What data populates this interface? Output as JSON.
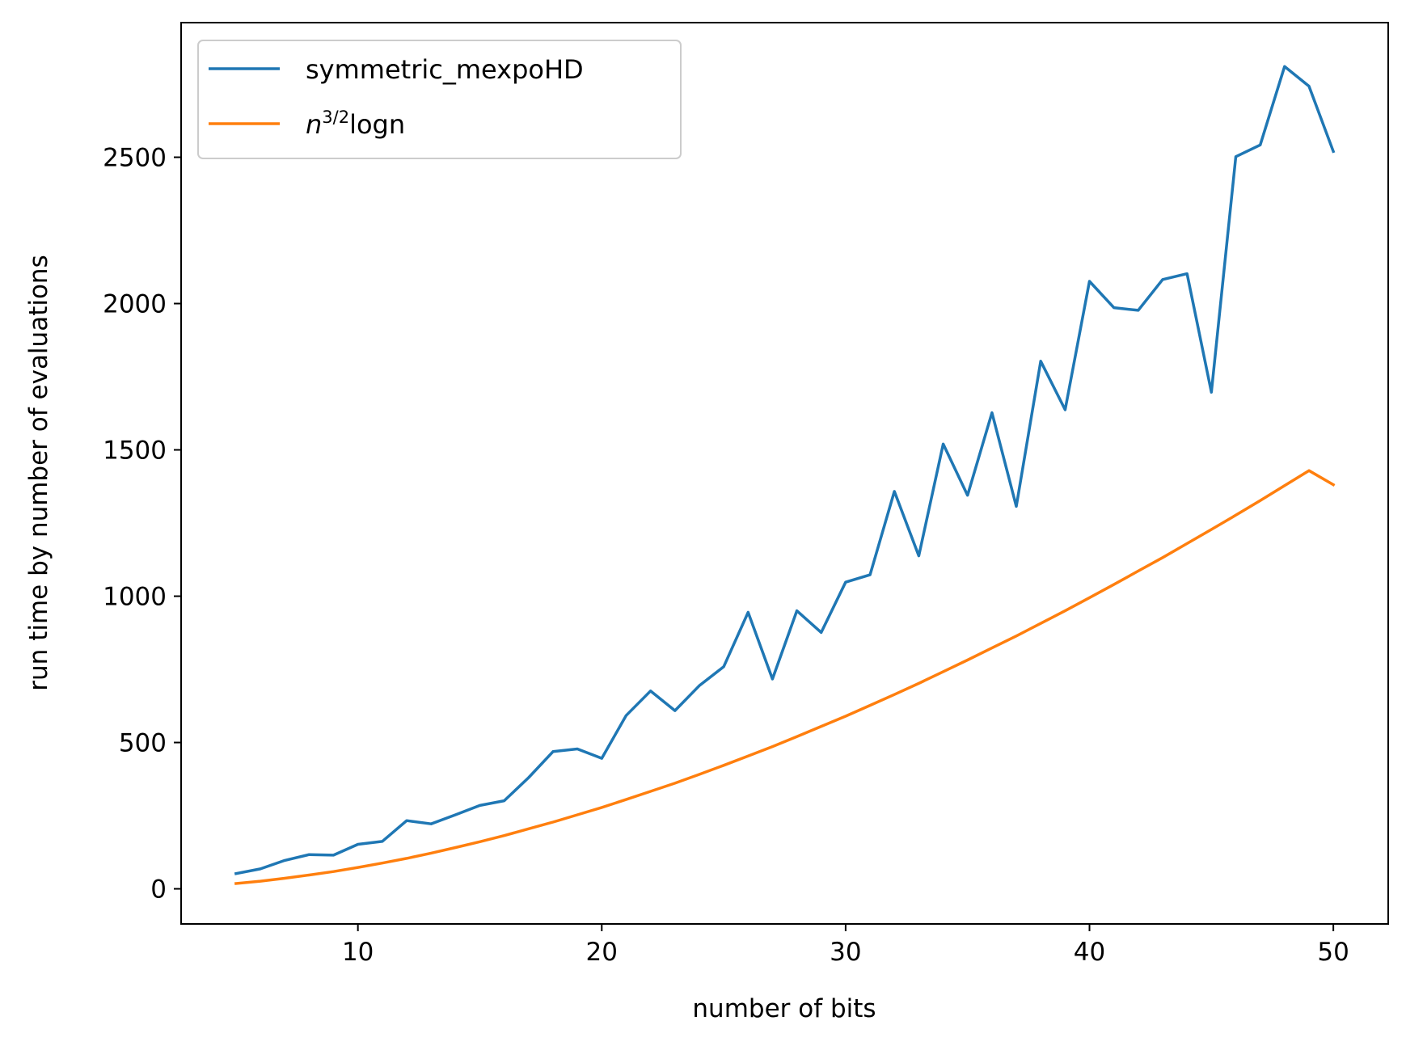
{
  "chart_data": {
    "type": "line",
    "title": "",
    "xlabel": "number of bits",
    "ylabel": "run time by number of evaluations",
    "xlim": [
      2.75,
      52.25
    ],
    "ylim": [
      -120,
      2960
    ],
    "xticks": [
      "10",
      "20",
      "30",
      "40",
      "50"
    ],
    "yticks": [
      "0",
      "500",
      "1000",
      "1500",
      "2000",
      "2500"
    ],
    "grid": false,
    "legend_position": "upper-left",
    "x": [
      5,
      6,
      7,
      8,
      9,
      10,
      11,
      12,
      13,
      14,
      15,
      16,
      17,
      18,
      19,
      20,
      21,
      22,
      23,
      24,
      25,
      26,
      27,
      28,
      29,
      30,
      31,
      32,
      33,
      34,
      35,
      36,
      37,
      38,
      39,
      40,
      41,
      42,
      43,
      44,
      45,
      46,
      47,
      48,
      49,
      50
    ],
    "series": [
      {
        "name": "symmetric_mexpoHD",
        "color": "#1f77b4",
        "values": [
          52,
          68,
          97,
          117,
          115,
          152,
          162,
          233,
          222,
          253,
          285,
          301,
          380,
          469,
          478,
          446,
          592,
          676,
          609,
          694,
          759,
          945,
          717,
          950,
          876,
          1048,
          1073,
          1358,
          1138,
          1520,
          1345,
          1627,
          1307,
          1803,
          1637,
          2076,
          1986,
          1977,
          2082,
          2102,
          1697,
          2502,
          2542,
          2810,
          2743,
          2520
        ]
      },
      {
        "name": "n^{3/2}logn",
        "name_base": "n",
        "name_sup": "3/2",
        "name_tail": "logn",
        "color": "#ff7f0e",
        "values": [
          18,
          26,
          36,
          47,
          59,
          73,
          88,
          104,
          122,
          141,
          161,
          182,
          205,
          228,
          253,
          278,
          305,
          333,
          361,
          391,
          422,
          454,
          486,
          520,
          555,
          590,
          627,
          664,
          702,
          742,
          782,
          823,
          864,
          907,
          950,
          995,
          1040,
          1086,
          1132,
          1180,
          1228,
          1277,
          1327,
          1378,
          1429,
          1381
        ]
      }
    ]
  }
}
